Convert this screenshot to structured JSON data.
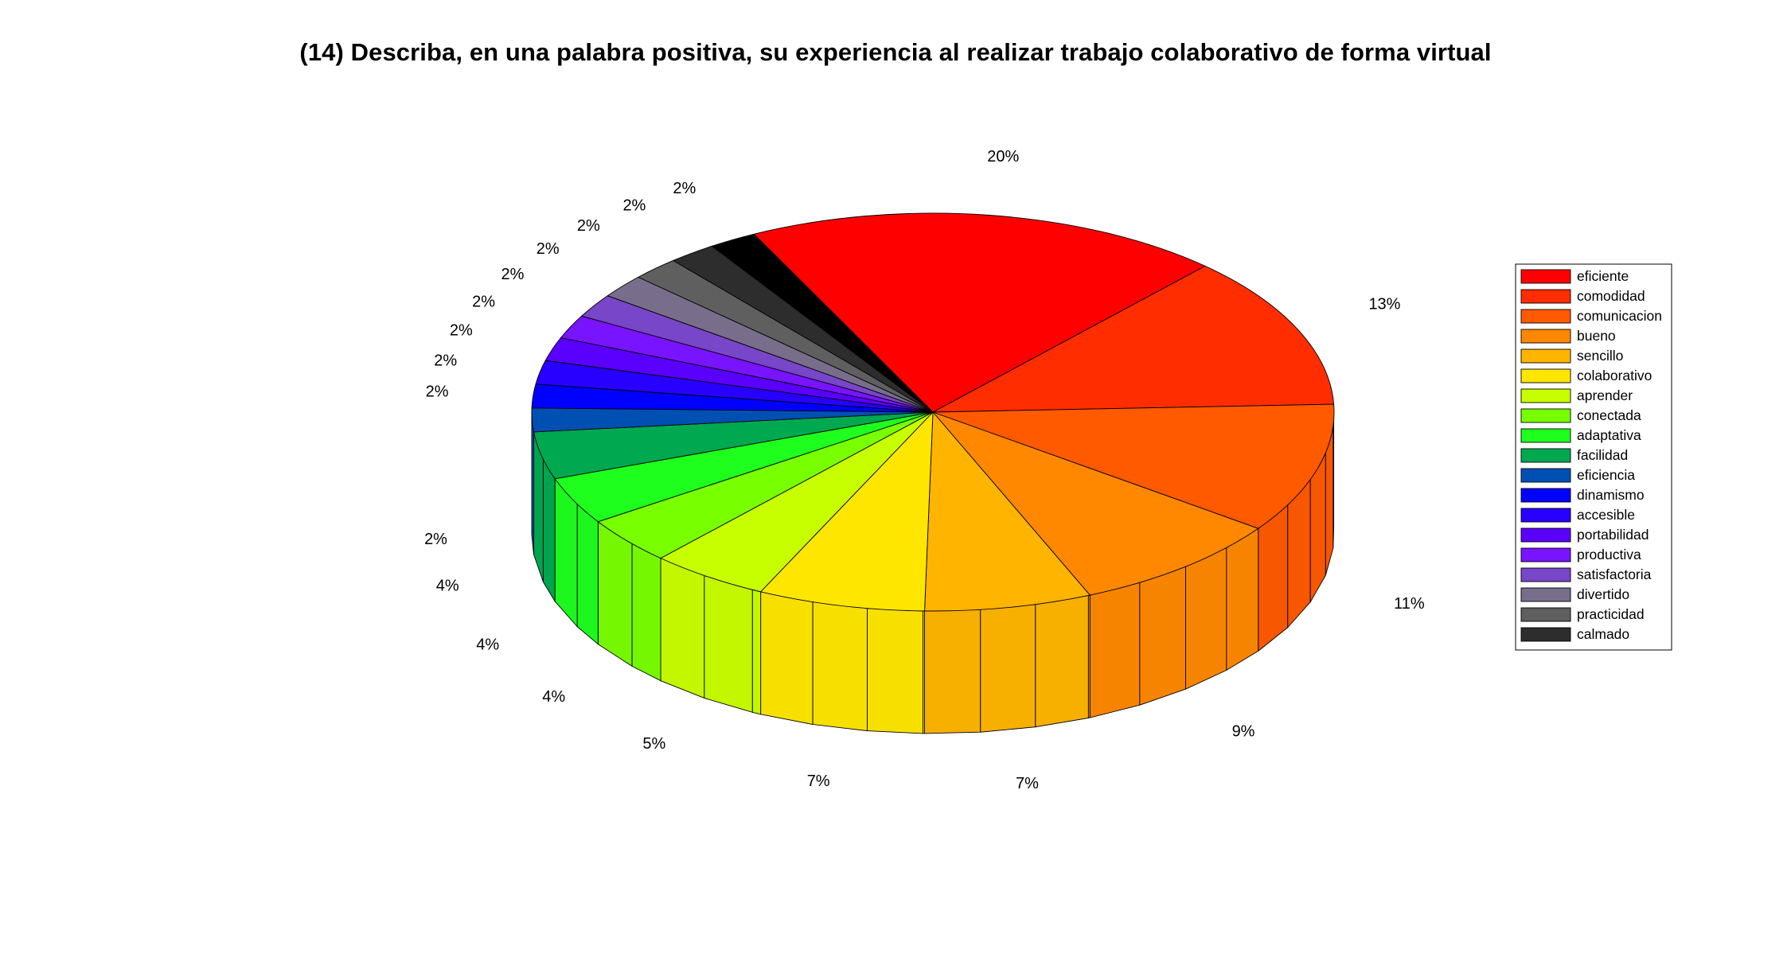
{
  "chart_data": {
    "type": "pie",
    "title": "(14) Describa, en una palabra positiva, su experiencia al realizar trabajo colaborativo de forma virtual",
    "three_d": true,
    "legend_position": "right",
    "slices": [
      {
        "name": "eficiente",
        "value": 20,
        "label": "20%",
        "color": "#FF0000"
      },
      {
        "name": "comodidad",
        "value": 13,
        "label": "13%",
        "color": "#FF2D00"
      },
      {
        "name": "comunicacion",
        "value": 11,
        "label": "11%",
        "color": "#FF5A00"
      },
      {
        "name": "bueno",
        "value": 9,
        "label": "9%",
        "color": "#FF8800"
      },
      {
        "name": "sencillo",
        "value": 7,
        "label": "7%",
        "color": "#FFB400"
      },
      {
        "name": "colaborativo",
        "value": 7,
        "label": "7%",
        "color": "#FFE600"
      },
      {
        "name": "aprender",
        "value": 5,
        "label": "5%",
        "color": "#C8FF00"
      },
      {
        "name": "conectada",
        "value": 4,
        "label": "4%",
        "color": "#78FF00"
      },
      {
        "name": "adaptativa",
        "value": 4,
        "label": "4%",
        "color": "#1EFF1E"
      },
      {
        "name": "facilidad",
        "value": 4,
        "label": "4%",
        "color": "#00A850"
      },
      {
        "name": "eficiencia",
        "value": 2,
        "label": "2%",
        "color": "#0050B4"
      },
      {
        "name": "dinamismo",
        "value": 2,
        "label": "2%",
        "color": "#0000FF"
      },
      {
        "name": "accesible",
        "value": 2,
        "label": "2%",
        "color": "#2800FF"
      },
      {
        "name": "portabilidad",
        "value": 2,
        "label": "2%",
        "color": "#5A00FF"
      },
      {
        "name": "productiva",
        "value": 2,
        "label": "2%",
        "color": "#7814FF"
      },
      {
        "name": "satisfactoria",
        "value": 2,
        "label": "2%",
        "color": "#7846C8"
      },
      {
        "name": "divertido",
        "value": 2,
        "label": "2%",
        "color": "#786E8C"
      },
      {
        "name": "practicidad",
        "value": 2,
        "label": "2%",
        "color": "#5F5F5F"
      },
      {
        "name": "calmado",
        "value": 2,
        "label": "2%",
        "color": "#2D2D2D"
      },
      {
        "name": "",
        "value": 2,
        "label": "2%",
        "color": "#000000"
      }
    ]
  }
}
